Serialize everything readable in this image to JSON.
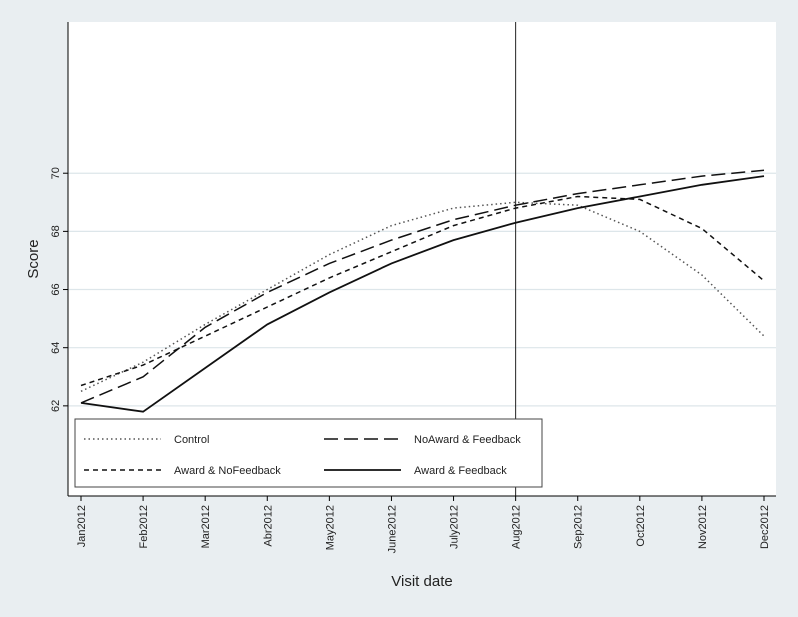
{
  "chart_data": {
    "type": "line",
    "title": "",
    "xlabel": "Visit date",
    "ylabel": "Score",
    "categories": [
      "Jan2012",
      "Feb2012",
      "Mar2012",
      "Abr2012",
      "May2012",
      "June2012",
      "July2012",
      "Aug2012",
      "Sep2012",
      "Oct2012",
      "Nov2012",
      "Dec2012"
    ],
    "yticks": [
      62,
      64,
      66,
      68,
      70
    ],
    "ylim": [
      58.9,
      75.2
    ],
    "grid": "horizontal",
    "reference_line_at": "Aug2012",
    "legend_position": "bottom-inside",
    "series": [
      {
        "name": "Control",
        "style": "dotted",
        "values": [
          62.5,
          63.5,
          64.8,
          66.0,
          67.2,
          68.2,
          68.8,
          69.0,
          68.9,
          68.0,
          66.5,
          64.4
        ]
      },
      {
        "name": "NoAward & Feedback",
        "style": "longdash",
        "values": [
          62.1,
          63.0,
          64.7,
          65.9,
          66.9,
          67.7,
          68.4,
          68.9,
          69.3,
          69.6,
          69.9,
          70.1
        ]
      },
      {
        "name": "Award & NoFeedback",
        "style": "shortdash",
        "values": [
          62.7,
          63.4,
          64.4,
          65.4,
          66.4,
          67.3,
          68.2,
          68.8,
          69.2,
          69.1,
          68.1,
          66.3
        ]
      },
      {
        "name": "Award & Feedback",
        "style": "solid",
        "values": [
          62.1,
          61.8,
          63.3,
          64.8,
          65.9,
          66.9,
          67.7,
          68.3,
          68.8,
          69.2,
          69.6,
          69.9
        ]
      }
    ]
  }
}
